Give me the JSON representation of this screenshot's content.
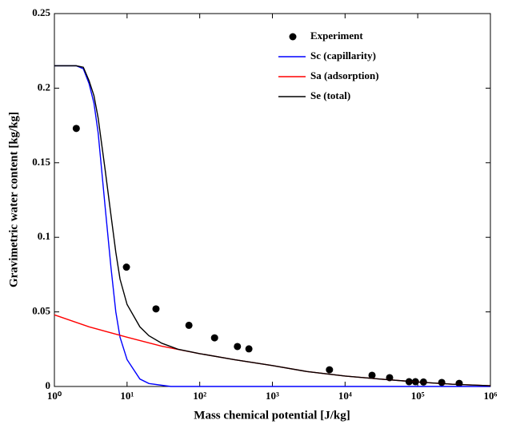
{
  "chart_data": {
    "type": "line",
    "xlabel": "Mass chemical potential [J/kg]",
    "ylabel": "Gravimetric water content [kg/kg]",
    "xscale": "log",
    "xlim": [
      1,
      1000000
    ],
    "xticks": [
      {
        "value": 1,
        "label": "10⁰"
      },
      {
        "value": 10,
        "label": "10¹"
      },
      {
        "value": 100,
        "label": "10²"
      },
      {
        "value": 1000,
        "label": "10³"
      },
      {
        "value": 10000,
        "label": "10⁴"
      },
      {
        "value": 100000,
        "label": "10⁵"
      },
      {
        "value": 1000000,
        "label": "10⁶"
      }
    ],
    "ylim": [
      0,
      0.25
    ],
    "yticks": [
      0,
      0.05,
      0.1,
      0.15,
      0.2,
      0.25
    ],
    "legend": "upper right",
    "series": [
      {
        "name": "Experiment",
        "color": "#000000",
        "style": "markers",
        "x": [
          2.0,
          9.8,
          25,
          71,
          160,
          330,
          475,
          6100,
          23500,
          41000,
          76000,
          93000,
          120000,
          214000,
          372000
        ],
        "values": [
          0.173,
          0.08,
          0.052,
          0.041,
          0.0326,
          0.0268,
          0.0252,
          0.0112,
          0.0075,
          0.0059,
          0.0032,
          0.0032,
          0.003,
          0.0027,
          0.0021
        ]
      },
      {
        "name": "Sc (capillarity)",
        "color": "#0000ff",
        "style": "line",
        "x": [
          1,
          2,
          2.5,
          3,
          3.5,
          4,
          5,
          6,
          7,
          8,
          10,
          15,
          20,
          40,
          1000000
        ],
        "values": [
          0.215,
          0.215,
          0.213,
          0.203,
          0.19,
          0.17,
          0.12,
          0.08,
          0.05,
          0.033,
          0.018,
          0.005,
          0.002,
          0,
          0
        ]
      },
      {
        "name": "Sa (adsorption)",
        "color": "#ff0000",
        "style": "line",
        "x": [
          1,
          3,
          10,
          30,
          100,
          300,
          1000,
          3000,
          10000,
          30000,
          100000,
          300000,
          1000000
        ],
        "values": [
          0.048,
          0.04,
          0.033,
          0.027,
          0.022,
          0.018,
          0.014,
          0.01,
          0.007,
          0.005,
          0.003,
          0.0015,
          0.0005
        ]
      },
      {
        "name": "Se (total)",
        "color": "#000000",
        "style": "line",
        "x": [
          1,
          2,
          2.5,
          3,
          3.5,
          4,
          5,
          6,
          7,
          8,
          10,
          15,
          20,
          30,
          50,
          100,
          300,
          1000,
          3000,
          10000,
          30000,
          100000,
          300000,
          1000000
        ],
        "values": [
          0.215,
          0.215,
          0.214,
          0.205,
          0.195,
          0.18,
          0.145,
          0.115,
          0.09,
          0.072,
          0.055,
          0.04,
          0.034,
          0.029,
          0.025,
          0.022,
          0.018,
          0.014,
          0.01,
          0.007,
          0.005,
          0.003,
          0.0015,
          0.0005
        ]
      }
    ]
  }
}
